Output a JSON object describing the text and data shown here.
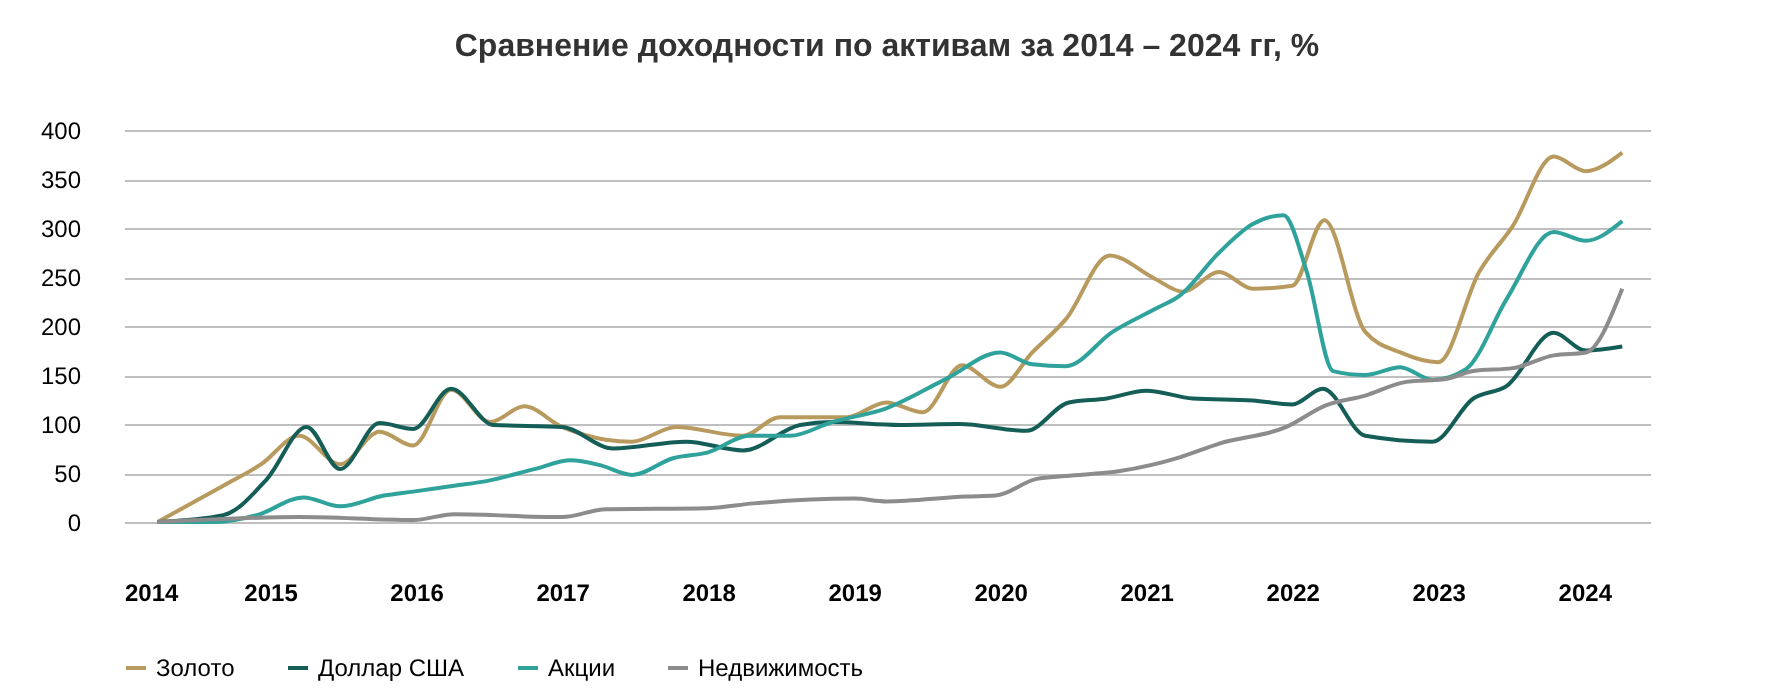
{
  "chart_data": {
    "type": "line",
    "title": "Сравнение доходности по активам за 2014 – 2024 гг, %",
    "xlim": [
      2014,
      2024.45
    ],
    "xticks": [
      2014,
      2015,
      2016,
      2017,
      2018,
      2019,
      2020,
      2021,
      2022,
      2023,
      2024
    ],
    "ylim": [
      0,
      400
    ],
    "yticks": [
      0,
      50,
      100,
      150,
      200,
      250,
      300,
      350,
      400
    ],
    "grid": "y",
    "legend": "bottom",
    "line_style": "solid",
    "marker": "none",
    "series": [
      {
        "name": "Золото",
        "color": "#b99a5e",
        "x": [
          2014.23,
          2014.68,
          2014.94,
          2015.2,
          2015.48,
          2015.75,
          2015.98,
          2016.24,
          2016.51,
          2016.74,
          2017.0,
          2017.3,
          2017.48,
          2017.78,
          2018.24,
          2018.49,
          2018.95,
          2019.22,
          2019.47,
          2019.74,
          2020.0,
          2020.22,
          2020.45,
          2020.75,
          2021.05,
          2021.25,
          2021.5,
          2021.73,
          2022.0,
          2022.22,
          2022.5,
          2022.74,
          2023.0,
          2023.28,
          2023.51,
          2023.79,
          2024.01,
          2024.26
        ],
        "values": [
          0,
          37,
          59,
          88,
          59,
          92,
          78,
          135,
          102,
          118,
          97,
          84,
          82,
          97,
          88,
          107,
          107,
          122,
          112,
          160,
          138,
          173,
          207,
          272,
          249,
          235,
          255,
          238,
          241,
          308,
          194,
          173,
          163,
          255,
          302,
          373,
          358,
          377
        ]
      },
      {
        "name": "Доллар США",
        "color": "#155e57",
        "x": [
          2014.23,
          2014.68,
          2014.98,
          2015.25,
          2015.48,
          2015.75,
          2015.98,
          2016.24,
          2016.53,
          2017.0,
          2017.35,
          2017.85,
          2018.24,
          2018.63,
          2018.85,
          2019.31,
          2019.72,
          2020.18,
          2020.47,
          2020.73,
          2021.0,
          2021.32,
          2021.73,
          2022.0,
          2022.21,
          2022.5,
          2022.96,
          2023.24,
          2023.47,
          2023.79,
          2024.01,
          2024.26
        ],
        "values": [
          0,
          7,
          44,
          97,
          54,
          101,
          95,
          136,
          99,
          97,
          75,
          82,
          73,
          99,
          102,
          99,
          100,
          93,
          122,
          126,
          134,
          126,
          124,
          120,
          136,
          88,
          82,
          126,
          139,
          193,
          175,
          179
        ]
      },
      {
        "name": "Акции",
        "color": "#2fa39b",
        "x": [
          2014.23,
          2014.61,
          2014.91,
          2015.23,
          2015.48,
          2015.78,
          2015.98,
          2016.26,
          2016.49,
          2016.81,
          2017.06,
          2017.26,
          2017.48,
          2017.76,
          2018.0,
          2018.28,
          2018.56,
          2018.85,
          2019.22,
          2019.63,
          2020.0,
          2020.22,
          2020.45,
          2020.77,
          2021.07,
          2021.23,
          2021.5,
          2021.73,
          2021.94,
          2022.1,
          2022.28,
          2022.5,
          2022.74,
          2022.96,
          2023.19,
          2023.47,
          2023.79,
          2024.01,
          2024.26
        ],
        "values": [
          0,
          0,
          7,
          25,
          16,
          27,
          31,
          37,
          42,
          54,
          63,
          58,
          48,
          65,
          71,
          88,
          88,
          102,
          116,
          146,
          173,
          161,
          159,
          194,
          218,
          231,
          275,
          304,
          313,
          255,
          154,
          150,
          158,
          145,
          156,
          228,
          296,
          287,
          307
        ]
      },
      {
        "name": "Недвижимость",
        "color": "#8c8c8c",
        "x": [
          2014.23,
          2015.2,
          2015.98,
          2016.26,
          2017.0,
          2017.3,
          2017.99,
          2018.31,
          2019.0,
          2019.22,
          2019.77,
          2019.97,
          2020.25,
          2020.45,
          2020.82,
          2021.23,
          2021.5,
          2021.96,
          2022.23,
          2022.5,
          2022.78,
          2023.05,
          2023.24,
          2023.51,
          2023.79,
          2024.01,
          2024.26
        ],
        "values": [
          0,
          5,
          2,
          8,
          5,
          13,
          14,
          19,
          24,
          21,
          26,
          27,
          44,
          47,
          52,
          66,
          80,
          97,
          119,
          129,
          143,
          146,
          154,
          157,
          170,
          173,
          238
        ]
      }
    ]
  }
}
